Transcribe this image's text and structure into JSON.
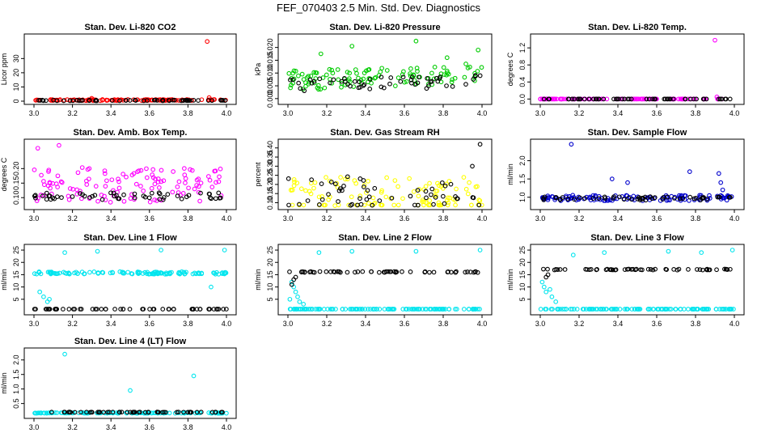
{
  "title": "FEF_070403  2.5 Min. Std. Dev. Diagnostics",
  "chart_data": [
    {
      "type": "scatter",
      "title": "Stan. Dev. Li-820 CO2",
      "ylabel": "Licor ppm",
      "xlim": [
        3.0,
        4.0
      ],
      "ylim": [
        0,
        45
      ],
      "xticks": [
        "3.0",
        "3.2",
        "3.4",
        "3.6",
        "3.8",
        "4.0"
      ],
      "yticks": [
        {
          "v": 0,
          "t": "0"
        },
        {
          "v": 10,
          "t": "10"
        },
        {
          "v": 20,
          "t": "20"
        },
        {
          "v": 30,
          "t": "30"
        }
      ],
      "series": [
        {
          "name": "series-a",
          "color": "#ff0000",
          "base": 0.6,
          "spread": 0.8,
          "outliers": [
            [
              3.3,
              2.0
            ],
            [
              3.9,
              42
            ],
            [
              3.91,
              2.5
            ]
          ]
        },
        {
          "name": "series-b",
          "color": "#000000",
          "base": 0.4,
          "spread": 0.5,
          "outliers": []
        }
      ]
    },
    {
      "type": "scatter",
      "title": "Stan. Dev. Li-820 Pressure",
      "ylabel": "kPa",
      "xlim": [
        3.0,
        4.0
      ],
      "ylim": [
        -0.001,
        0.024
      ],
      "xticks": [
        "3.0",
        "3.2",
        "3.4",
        "3.6",
        "3.8",
        "4.0"
      ],
      "yticks": [
        {
          "v": 0,
          "t": "0.000"
        },
        {
          "v": 0.005,
          "t": "0.005"
        },
        {
          "v": 0.01,
          "t": "0.010"
        },
        {
          "v": 0.015,
          "t": "0.015"
        },
        {
          "v": 0.02,
          "t": "0.020"
        }
      ],
      "series": [
        {
          "name": "series-a",
          "color": "#00cc00",
          "base": 0.0055,
          "spread": 0.008,
          "trend": 0.003,
          "outliers": [
            [
              3.17,
              0.0175
            ],
            [
              3.33,
              0.0205
            ],
            [
              3.66,
              0.0225
            ],
            [
              3.82,
              0.016
            ],
            [
              3.98,
              0.019
            ]
          ]
        },
        {
          "name": "series-b",
          "color": "#000000",
          "base": 0.004,
          "spread": 0.005,
          "trend": 0.002,
          "outliers": []
        }
      ]
    },
    {
      "type": "scatter",
      "title": "Stan. Dev. Li-820 Temp.",
      "ylabel": "degrees C",
      "xlim": [
        3.0,
        4.0
      ],
      "ylim": [
        -0.05,
        1.45
      ],
      "xticks": [
        "3.0",
        "3.2",
        "3.4",
        "3.6",
        "3.8",
        "4.0"
      ],
      "yticks": [
        {
          "v": 0,
          "t": "0.0"
        },
        {
          "v": 0.4,
          "t": "0.4"
        },
        {
          "v": 0.8,
          "t": "0.8"
        },
        {
          "v": 1.2,
          "t": "1.2"
        }
      ],
      "series": [
        {
          "name": "series-a",
          "color": "#ff00ff",
          "base": 0.0,
          "spread": 0.0,
          "outliers": [
            [
              3.9,
              1.38
            ],
            [
              3.91,
              0.05
            ]
          ]
        },
        {
          "name": "series-b",
          "color": "#000000",
          "base": 0.0,
          "spread": 0.0,
          "outliers": []
        }
      ]
    },
    {
      "type": "scatter",
      "title": "Stan. Dev. Amb. Box Temp.",
      "ylabel": "degrees C",
      "xlim": [
        3.0,
        4.0
      ],
      "ylim": [
        0.07,
        0.29
      ],
      "xticks": [
        "3.0",
        "3.2",
        "3.4",
        "3.6",
        "3.8",
        "4.0"
      ],
      "yticks": [
        {
          "v": 0.1,
          "t": "0.10"
        },
        {
          "v": 0.15,
          "t": "0.15"
        },
        {
          "v": 0.2,
          "t": "0.20"
        }
      ],
      "series": [
        {
          "name": "series-a",
          "color": "#ff00ff",
          "base": 0.12,
          "spread": 0.12,
          "outliers": [
            [
              3.02,
              0.27
            ],
            [
              3.13,
              0.28
            ]
          ]
        },
        {
          "name": "series-b",
          "color": "#000000",
          "base": 0.1,
          "spread": 0.025,
          "outliers": []
        }
      ]
    },
    {
      "type": "scatter",
      "title": "Stan. Dev. Gas Stream RH",
      "ylabel": "percent",
      "xlim": [
        3.0,
        4.0
      ],
      "ylim": [
        0.08,
        0.43
      ],
      "xticks": [
        "3.0",
        "3.2",
        "3.4",
        "3.6",
        "3.8",
        "4.0"
      ],
      "yticks": [
        {
          "v": 0.1,
          "t": "0.10"
        },
        {
          "v": 0.15,
          "t": "0.15"
        },
        {
          "v": 0.2,
          "t": "0.20"
        },
        {
          "v": 0.25,
          "t": "0.25"
        },
        {
          "v": 0.3,
          "t": "0.30"
        },
        {
          "v": 0.35,
          "t": "0.35"
        },
        {
          "v": 0.4,
          "t": "0.40"
        }
      ],
      "series": [
        {
          "name": "series-a",
          "color": "#ffff00",
          "base": 0.1,
          "spread": 0.2,
          "outliers": []
        },
        {
          "name": "series-b",
          "color": "#000000",
          "base": 0.12,
          "spread": 0.18,
          "outliers": [
            [
              3.99,
              0.42
            ],
            [
              3.95,
              0.3
            ]
          ]
        }
      ]
    },
    {
      "type": "scatter",
      "title": "Stan. Dev. Sample Flow",
      "ylabel": "ml/min",
      "xlim": [
        3.0,
        4.0
      ],
      "ylim": [
        0.75,
        2.5
      ],
      "xticks": [
        "3.0",
        "3.2",
        "3.4",
        "3.6",
        "3.8",
        "4.0"
      ],
      "yticks": [
        {
          "v": 1.0,
          "t": "1.0"
        },
        {
          "v": 1.5,
          "t": "1.5"
        },
        {
          "v": 2.0,
          "t": "2.0"
        }
      ],
      "series": [
        {
          "name": "series-a",
          "color": "#0000cc",
          "base": 0.95,
          "spread": 0.15,
          "outliers": [
            [
              3.16,
              2.45
            ],
            [
              3.37,
              1.5
            ],
            [
              3.45,
              1.4
            ],
            [
              3.77,
              1.7
            ],
            [
              3.92,
              1.65
            ],
            [
              3.93,
              1.4
            ],
            [
              3.94,
              1.2
            ]
          ]
        },
        {
          "name": "series-b",
          "color": "#000000",
          "base": 0.95,
          "spread": 0.1,
          "outliers": []
        }
      ]
    },
    {
      "type": "scatter",
      "title": "Stan. Dev. Line 1 Flow",
      "ylabel": "ml/min",
      "xlim": [
        3.0,
        4.0
      ],
      "ylim": [
        0,
        26
      ],
      "xticks": [
        "3.0",
        "3.2",
        "3.4",
        "3.6",
        "3.8",
        "4.0"
      ],
      "yticks": [
        {
          "v": 5,
          "t": "5"
        },
        {
          "v": 10,
          "t": "10"
        },
        {
          "v": 15,
          "t": "15"
        },
        {
          "v": 20,
          "t": "20"
        },
        {
          "v": 25,
          "t": "25"
        }
      ],
      "series": [
        {
          "name": "series-a",
          "color": "#00e5ee",
          "base": 15.5,
          "spread": 1.0,
          "outliers": [
            [
              3.03,
              8
            ],
            [
              3.05,
              6
            ],
            [
              3.07,
              4
            ],
            [
              3.08,
              5
            ],
            [
              3.16,
              24
            ],
            [
              3.33,
              24.5
            ],
            [
              3.66,
              25
            ],
            [
              3.92,
              10
            ],
            [
              3.99,
              25
            ]
          ]
        },
        {
          "name": "series-b",
          "color": "#000000",
          "base": 1.0,
          "spread": 0.0,
          "outliers": []
        }
      ]
    },
    {
      "type": "scatter",
      "title": "Stan. Dev. Line 2 Flow",
      "ylabel": "ml/min",
      "xlim": [
        3.0,
        4.0
      ],
      "ylim": [
        0,
        26
      ],
      "xticks": [
        "3.0",
        "3.2",
        "3.4",
        "3.6",
        "3.8",
        "4.0"
      ],
      "yticks": [
        {
          "v": 5,
          "t": "5"
        },
        {
          "v": 10,
          "t": "10"
        },
        {
          "v": 15,
          "t": "15"
        },
        {
          "v": 20,
          "t": "20"
        },
        {
          "v": 25,
          "t": "25"
        }
      ],
      "series": [
        {
          "name": "series-a",
          "color": "#00e5ee",
          "base": 1.0,
          "spread": 0.0,
          "outliers": [
            [
              3.01,
              5
            ],
            [
              3.02,
              12
            ],
            [
              3.03,
              10
            ],
            [
              3.04,
              8
            ],
            [
              3.05,
              6
            ],
            [
              3.06,
              4
            ],
            [
              3.08,
              3
            ],
            [
              3.16,
              24
            ],
            [
              3.33,
              24.5
            ],
            [
              3.66,
              24.5
            ],
            [
              3.99,
              25
            ]
          ]
        },
        {
          "name": "series-b",
          "color": "#000000",
          "base": 16.0,
          "spread": 0.4,
          "outliers": [
            [
              3.02,
              11
            ],
            [
              3.03,
              13
            ],
            [
              3.04,
              14
            ]
          ]
        }
      ]
    },
    {
      "type": "scatter",
      "title": "Stan. Dev. Line 3 Flow",
      "ylabel": "ml/min",
      "xlim": [
        3.0,
        4.0
      ],
      "ylim": [
        0,
        26
      ],
      "xticks": [
        "3.0",
        "3.2",
        "3.4",
        "3.6",
        "3.8",
        "4.0"
      ],
      "yticks": [
        {
          "v": 5,
          "t": "5"
        },
        {
          "v": 10,
          "t": "10"
        },
        {
          "v": 15,
          "t": "15"
        },
        {
          "v": 20,
          "t": "20"
        },
        {
          "v": 25,
          "t": "25"
        }
      ],
      "series": [
        {
          "name": "series-a",
          "color": "#00e5ee",
          "base": 1.0,
          "spread": 0.0,
          "outliers": [
            [
              3.01,
              12
            ],
            [
              3.02,
              10
            ],
            [
              3.03,
              8
            ],
            [
              3.05,
              9
            ],
            [
              3.06,
              6
            ],
            [
              3.08,
              4
            ],
            [
              3.17,
              23
            ],
            [
              3.33,
              24
            ],
            [
              3.66,
              24.5
            ],
            [
              3.83,
              24
            ],
            [
              3.99,
              25
            ]
          ]
        },
        {
          "name": "series-b",
          "color": "#000000",
          "base": 17.0,
          "spread": 0.4,
          "outliers": [
            [
              3.03,
              14
            ],
            [
              3.04,
              15
            ]
          ]
        }
      ]
    },
    {
      "type": "scatter",
      "title": "Stan. Dev. Line 4 (LT) Flow",
      "ylabel": "ml/min",
      "xlim": [
        3.0,
        4.0
      ],
      "ylim": [
        0.1,
        2.3
      ],
      "xticks": [
        "3.0",
        "3.2",
        "3.4",
        "3.6",
        "3.8",
        "4.0"
      ],
      "yticks": [
        {
          "v": 0.5,
          "t": "0.5"
        },
        {
          "v": 1.0,
          "t": "1.0"
        },
        {
          "v": 1.5,
          "t": "1.5"
        },
        {
          "v": 2.0,
          "t": "2.0"
        }
      ],
      "series": [
        {
          "name": "series-a",
          "color": "#00e5ee",
          "base": 0.17,
          "spread": 0.02,
          "outliers": [
            [
              3.16,
              2.2
            ],
            [
              3.5,
              0.95
            ],
            [
              3.83,
              1.45
            ]
          ]
        },
        {
          "name": "series-b",
          "color": "#000000",
          "base": 0.2,
          "spread": 0.01,
          "outliers": []
        }
      ]
    }
  ]
}
